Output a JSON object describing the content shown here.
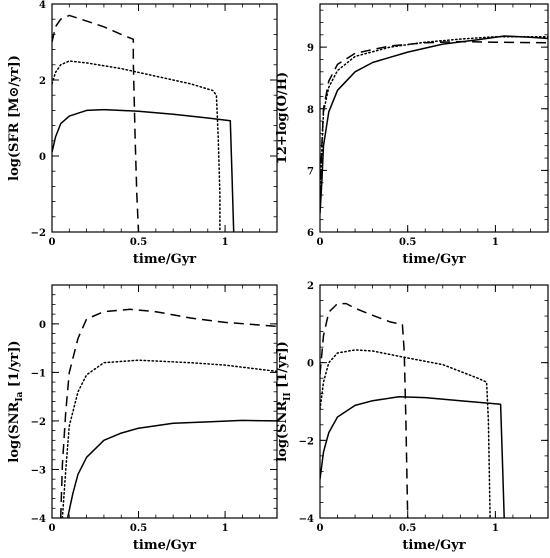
{
  "chart_data": [
    {
      "type": "line",
      "xlabel": "time/Gyr",
      "ylabel": "log(SFR [M⊙/yr])",
      "xlim": [
        0,
        1.3
      ],
      "ylim": [
        -2,
        4
      ],
      "xticks": [
        0,
        0.5,
        1
      ],
      "xtick_labels": [
        "0",
        "0.5",
        "1"
      ],
      "yticks": [
        -2,
        0,
        2,
        4
      ],
      "ytick_labels": [
        "−2",
        "0",
        "2",
        "4"
      ],
      "grid": false,
      "series": [
        {
          "style": "dashed",
          "points": [
            [
              0.0,
              3.0
            ],
            [
              0.02,
              3.4
            ],
            [
              0.05,
              3.6
            ],
            [
              0.1,
              3.7
            ],
            [
              0.2,
              3.55
            ],
            [
              0.3,
              3.4
            ],
            [
              0.4,
              3.2
            ],
            [
              0.47,
              3.07
            ],
            [
              0.47,
              2.5
            ],
            [
              0.48,
              0.5
            ],
            [
              0.49,
              -1.0
            ],
            [
              0.5,
              -2.0
            ]
          ]
        },
        {
          "style": "dotted",
          "points": [
            [
              0.0,
              1.9
            ],
            [
              0.02,
              2.2
            ],
            [
              0.05,
              2.4
            ],
            [
              0.1,
              2.5
            ],
            [
              0.2,
              2.45
            ],
            [
              0.4,
              2.3
            ],
            [
              0.6,
              2.1
            ],
            [
              0.8,
              1.9
            ],
            [
              0.93,
              1.72
            ],
            [
              0.95,
              1.6
            ],
            [
              0.96,
              0.5
            ],
            [
              0.97,
              -1.0
            ],
            [
              0.97,
              -2.0
            ]
          ]
        },
        {
          "style": "solid",
          "points": [
            [
              0.0,
              0.1
            ],
            [
              0.02,
              0.5
            ],
            [
              0.05,
              0.85
            ],
            [
              0.1,
              1.05
            ],
            [
              0.2,
              1.2
            ],
            [
              0.3,
              1.22
            ],
            [
              0.5,
              1.18
            ],
            [
              0.7,
              1.1
            ],
            [
              0.9,
              1.0
            ],
            [
              1.03,
              0.93
            ],
            [
              1.04,
              -0.5
            ],
            [
              1.05,
              -2.0
            ]
          ]
        }
      ]
    },
    {
      "type": "line",
      "xlabel": "time/Gyr",
      "ylabel": "12+log(O/H)",
      "xlim": [
        0,
        1.3
      ],
      "ylim": [
        6,
        9.7
      ],
      "xticks": [
        0,
        0.5,
        1
      ],
      "xtick_labels": [
        "0",
        "0.5",
        "1"
      ],
      "yticks": [
        6,
        7,
        8,
        9
      ],
      "ytick_labels": [
        "6",
        "7",
        "8",
        "9"
      ],
      "grid": false,
      "series": [
        {
          "style": "dashed",
          "points": [
            [
              0.0,
              6.6
            ],
            [
              0.01,
              7.4
            ],
            [
              0.02,
              8.0
            ],
            [
              0.05,
              8.45
            ],
            [
              0.1,
              8.72
            ],
            [
              0.2,
              8.9
            ],
            [
              0.4,
              9.02
            ],
            [
              0.6,
              9.07
            ],
            [
              0.8,
              9.09
            ],
            [
              1.0,
              9.08
            ],
            [
              1.3,
              9.07
            ]
          ]
        },
        {
          "style": "dotted",
          "points": [
            [
              0.0,
              6.6
            ],
            [
              0.01,
              7.3
            ],
            [
              0.02,
              7.95
            ],
            [
              0.05,
              8.35
            ],
            [
              0.1,
              8.62
            ],
            [
              0.2,
              8.85
            ],
            [
              0.4,
              9.0
            ],
            [
              0.6,
              9.08
            ],
            [
              0.8,
              9.13
            ],
            [
              1.0,
              9.17
            ],
            [
              1.3,
              9.17
            ]
          ]
        },
        {
          "style": "solid",
          "points": [
            [
              0.0,
              6.3
            ],
            [
              0.01,
              6.8
            ],
            [
              0.02,
              7.4
            ],
            [
              0.05,
              7.95
            ],
            [
              0.1,
              8.3
            ],
            [
              0.2,
              8.6
            ],
            [
              0.3,
              8.75
            ],
            [
              0.5,
              8.92
            ],
            [
              0.7,
              9.05
            ],
            [
              0.9,
              9.12
            ],
            [
              1.05,
              9.18
            ],
            [
              1.2,
              9.16
            ],
            [
              1.3,
              9.14
            ]
          ]
        }
      ]
    },
    {
      "type": "line",
      "xlabel": "time/Gyr",
      "ylabel": "log(SNR_Ia [1/yr])",
      "xlim": [
        0,
        1.3
      ],
      "ylim": [
        -4,
        0.8
      ],
      "xticks": [
        0,
        0.5,
        1
      ],
      "xtick_labels": [
        "0",
        "0.5",
        "1"
      ],
      "yticks": [
        -4,
        -3,
        -2,
        -1,
        0
      ],
      "ytick_labels": [
        "−4",
        "−3",
        "−2",
        "−1",
        "0"
      ],
      "grid": false,
      "series": [
        {
          "style": "dashed",
          "points": [
            [
              0.05,
              -4.0
            ],
            [
              0.06,
              -2.9
            ],
            [
              0.08,
              -1.8
            ],
            [
              0.1,
              -1.0
            ],
            [
              0.15,
              -0.3
            ],
            [
              0.2,
              0.1
            ],
            [
              0.3,
              0.25
            ],
            [
              0.45,
              0.3
            ],
            [
              0.6,
              0.25
            ],
            [
              0.8,
              0.12
            ],
            [
              1.0,
              0.03
            ],
            [
              1.3,
              -0.05
            ]
          ]
        },
        {
          "style": "dotted",
          "points": [
            [
              0.06,
              -4.0
            ],
            [
              0.08,
              -3.0
            ],
            [
              0.1,
              -2.1
            ],
            [
              0.15,
              -1.4
            ],
            [
              0.2,
              -1.05
            ],
            [
              0.3,
              -0.8
            ],
            [
              0.5,
              -0.75
            ],
            [
              0.8,
              -0.8
            ],
            [
              1.0,
              -0.85
            ],
            [
              1.3,
              -0.98
            ]
          ]
        },
        {
          "style": "solid",
          "points": [
            [
              0.09,
              -4.0
            ],
            [
              0.12,
              -3.5
            ],
            [
              0.15,
              -3.1
            ],
            [
              0.2,
              -2.75
            ],
            [
              0.3,
              -2.4
            ],
            [
              0.4,
              -2.25
            ],
            [
              0.5,
              -2.15
            ],
            [
              0.7,
              -2.05
            ],
            [
              0.9,
              -2.02
            ],
            [
              1.1,
              -1.99
            ],
            [
              1.3,
              -2.0
            ]
          ]
        }
      ]
    },
    {
      "type": "line",
      "xlabel": "time/Gyr",
      "ylabel": "log(SNR_II [1/yr])",
      "xlim": [
        0,
        1.3
      ],
      "ylim": [
        -4,
        2
      ],
      "xticks": [
        0,
        0.5,
        1
      ],
      "xtick_labels": [
        "0",
        "0.5",
        "1"
      ],
      "yticks": [
        -4,
        -2,
        0,
        2
      ],
      "ytick_labels": [
        "−4",
        "−2",
        "0",
        "2"
      ],
      "grid": false,
      "series": [
        {
          "style": "dashed",
          "points": [
            [
              0.0,
              -0.3
            ],
            [
              0.02,
              0.7
            ],
            [
              0.05,
              1.3
            ],
            [
              0.1,
              1.52
            ],
            [
              0.15,
              1.52
            ],
            [
              0.2,
              1.4
            ],
            [
              0.3,
              1.22
            ],
            [
              0.4,
              1.05
            ],
            [
              0.47,
              0.98
            ],
            [
              0.48,
              0.3
            ],
            [
              0.49,
              -1.5
            ],
            [
              0.5,
              -4.0
            ]
          ]
        },
        {
          "style": "dotted",
          "points": [
            [
              0.0,
              -1.2
            ],
            [
              0.02,
              -0.5
            ],
            [
              0.05,
              0.0
            ],
            [
              0.1,
              0.25
            ],
            [
              0.2,
              0.33
            ],
            [
              0.3,
              0.3
            ],
            [
              0.5,
              0.12
            ],
            [
              0.7,
              -0.05
            ],
            [
              0.9,
              -0.4
            ],
            [
              0.95,
              -0.5
            ],
            [
              0.96,
              -1.5
            ],
            [
              0.97,
              -4.0
            ]
          ]
        },
        {
          "style": "solid",
          "points": [
            [
              0.0,
              -3.0
            ],
            [
              0.02,
              -2.3
            ],
            [
              0.05,
              -1.8
            ],
            [
              0.1,
              -1.4
            ],
            [
              0.2,
              -1.1
            ],
            [
              0.3,
              -0.98
            ],
            [
              0.45,
              -0.88
            ],
            [
              0.6,
              -0.9
            ],
            [
              0.8,
              -0.98
            ],
            [
              1.03,
              -1.07
            ],
            [
              1.04,
              -2.5
            ],
            [
              1.05,
              -4.0
            ]
          ]
        }
      ]
    }
  ]
}
